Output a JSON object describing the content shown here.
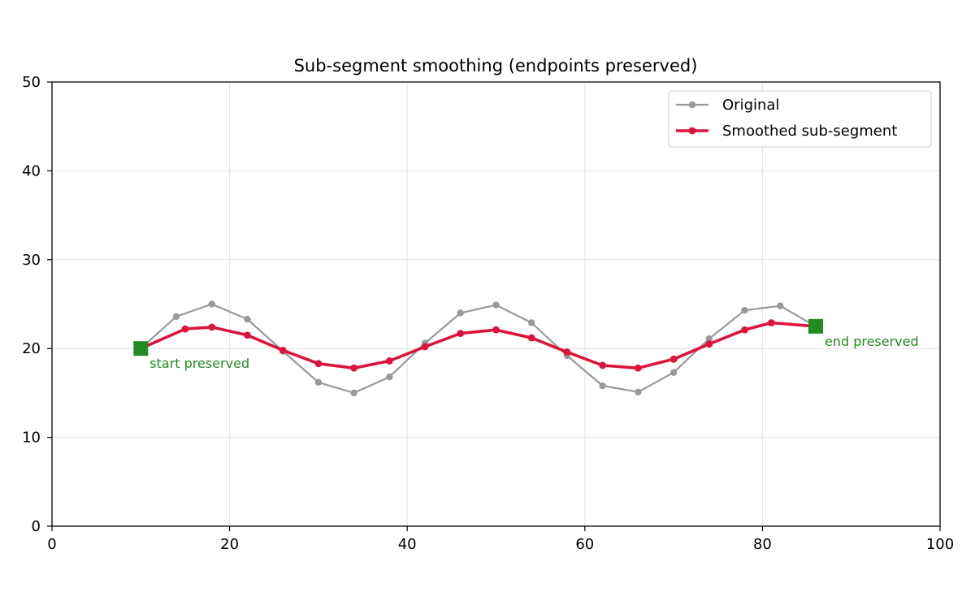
{
  "chart_data": {
    "type": "line",
    "title": "Sub-segment smoothing (endpoints preserved)",
    "xlabel": "",
    "ylabel": "",
    "xlim": [
      0,
      100
    ],
    "ylim": [
      0,
      50
    ],
    "xticks": [
      0,
      20,
      40,
      60,
      80,
      100
    ],
    "yticks": [
      0,
      10,
      20,
      30,
      40,
      50
    ],
    "grid": true,
    "legend_position": "upper right",
    "series": [
      {
        "name": "Original",
        "color": "#999999",
        "x": [
          10,
          14,
          18,
          22,
          26,
          30,
          34,
          38,
          42,
          46,
          50,
          54,
          58,
          62,
          66,
          70,
          74,
          78,
          82,
          86
        ],
        "y": [
          20.0,
          23.6,
          25.0,
          23.3,
          19.7,
          16.2,
          15.0,
          16.8,
          20.6,
          24.0,
          24.9,
          22.9,
          19.2,
          15.8,
          15.1,
          17.3,
          21.1,
          24.3,
          24.8,
          22.5
        ]
      },
      {
        "name": "Smoothed sub-segment",
        "color": "#dc143c",
        "x": [
          10,
          15,
          18,
          22,
          26,
          30,
          34,
          38,
          42,
          46,
          50,
          54,
          58,
          62,
          66,
          70,
          74,
          78,
          81,
          86
        ],
        "y": [
          20.0,
          22.2,
          22.4,
          21.5,
          19.8,
          18.3,
          17.8,
          18.6,
          20.2,
          21.7,
          22.1,
          21.2,
          19.6,
          18.1,
          17.8,
          18.8,
          20.5,
          22.1,
          22.9,
          22.5
        ]
      }
    ],
    "endpoints": [
      {
        "x": 10,
        "y": 20.0,
        "label": "start preserved"
      },
      {
        "x": 86,
        "y": 22.5,
        "label": "end preserved"
      }
    ],
    "endpoint_color": "#228b22"
  }
}
